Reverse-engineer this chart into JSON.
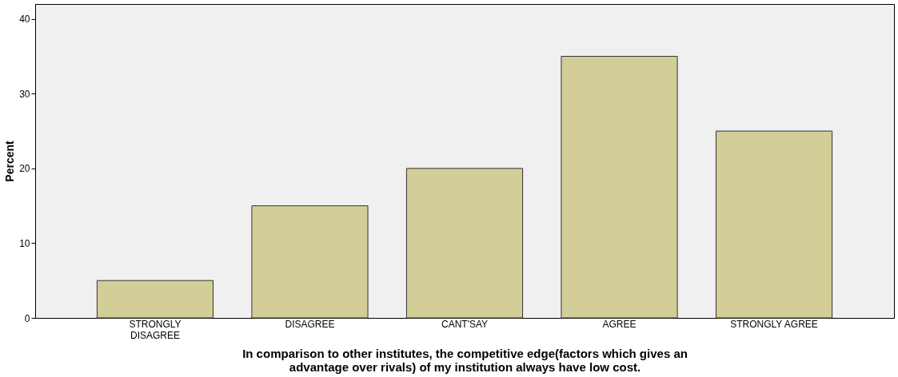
{
  "chart_data": {
    "type": "bar",
    "xlabel": "In comparison to other institutes, the competitive edge(factors which gives an advantage over rivals) of my institution always have low cost.",
    "ylabel": "Percent",
    "categories": [
      "STRONGLY DISAGREE",
      "DISAGREE",
      "CANT'SAY",
      "AGREE",
      "STRONGLY AGREE"
    ],
    "values": [
      5,
      15,
      20,
      35,
      25
    ],
    "color": "#d3cd97",
    "ylim": [
      0,
      42
    ],
    "yticks": [
      0,
      10,
      20,
      30,
      40
    ],
    "grid": false
  }
}
